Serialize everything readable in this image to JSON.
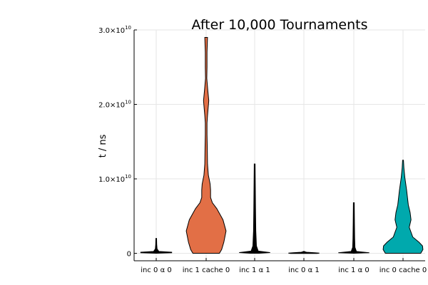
{
  "chart_data": {
    "type": "violin",
    "title": "After 10,000 Tournaments",
    "xlabel": "",
    "ylabel": "t / ns",
    "ylim": [
      -1000000000,
      30000000000
    ],
    "grid": true,
    "legend": "none",
    "y_ticks": [
      {
        "value": 0,
        "mantissa": "0",
        "exponent": ""
      },
      {
        "value": 10000000000,
        "mantissa": "1.0×10",
        "exponent": "10"
      },
      {
        "value": 20000000000,
        "mantissa": "2.0×10",
        "exponent": "10"
      },
      {
        "value": 30000000000,
        "mantissa": "3.0×10",
        "exponent": "10"
      }
    ],
    "series": [
      {
        "label": "inc 0 α 0",
        "color": "#000000",
        "profile": [
          [
            0,
            0.004
          ],
          [
            70000000,
            0.35
          ],
          [
            150000000,
            0.35
          ],
          [
            250000000,
            0.06
          ],
          [
            600000000,
            0.02
          ],
          [
            1200000000,
            0.012
          ],
          [
            2000000000,
            0.008
          ]
        ]
      },
      {
        "label": "inc 1 cache 0",
        "color": "#e26f46",
        "profile": [
          [
            0,
            0.3
          ],
          [
            500000000,
            0.35
          ],
          [
            1500000000,
            0.4
          ],
          [
            3000000000,
            0.45
          ],
          [
            4500000000,
            0.38
          ],
          [
            6000000000,
            0.24
          ],
          [
            6800000000,
            0.14
          ],
          [
            7500000000,
            0.1
          ],
          [
            8500000000,
            0.1
          ],
          [
            9300000000,
            0.09
          ],
          [
            10500000000,
            0.05
          ],
          [
            12000000000,
            0.03
          ],
          [
            14000000000,
            0.025
          ],
          [
            16000000000,
            0.02
          ],
          [
            17500000000,
            0.02
          ],
          [
            18500000000,
            0.03
          ],
          [
            20500000000,
            0.06
          ],
          [
            22000000000,
            0.035
          ],
          [
            23500000000,
            0.015
          ],
          [
            25000000000,
            0.02
          ],
          [
            27000000000,
            0.02
          ],
          [
            29000000000,
            0.03
          ]
        ]
      },
      {
        "label": "inc 1 α 1",
        "color": "#000000",
        "profile": [
          [
            0,
            0.1
          ],
          [
            100000000,
            0.35
          ],
          [
            300000000,
            0.08
          ],
          [
            1000000000,
            0.04
          ],
          [
            3000000000,
            0.025
          ],
          [
            6000000000,
            0.02
          ],
          [
            9000000000,
            0.015
          ],
          [
            12000000000,
            0.01
          ]
        ]
      },
      {
        "label": "inc 0 α 1",
        "color": "#000000",
        "profile": [
          [
            -20000000,
            0.3
          ],
          [
            30000000,
            0.35
          ],
          [
            80000000,
            0.25
          ],
          [
            150000000,
            0.06
          ],
          [
            200000000,
            0.03
          ],
          [
            250000000,
            0.01
          ]
        ]
      },
      {
        "label": "inc 1 α 0",
        "color": "#000000",
        "profile": [
          [
            0,
            0.004
          ],
          [
            80000000,
            0.35
          ],
          [
            250000000,
            0.06
          ],
          [
            800000000,
            0.025
          ],
          [
            2000000000,
            0.02
          ],
          [
            4000000000,
            0.015
          ],
          [
            6800000000,
            0.01
          ]
        ]
      },
      {
        "label": "inc 0 cache 0",
        "color": "#00a9ad",
        "profile": [
          [
            0,
            0.4
          ],
          [
            500000000,
            0.45
          ],
          [
            1000000000,
            0.44
          ],
          [
            1500000000,
            0.36
          ],
          [
            2200000000,
            0.22
          ],
          [
            3500000000,
            0.14
          ],
          [
            4500000000,
            0.18
          ],
          [
            5500000000,
            0.16
          ],
          [
            6500000000,
            0.12
          ],
          [
            8500000000,
            0.08
          ],
          [
            10200000000,
            0.04
          ],
          [
            11500000000,
            0.02
          ],
          [
            12500000000,
            0.01
          ]
        ]
      }
    ]
  }
}
